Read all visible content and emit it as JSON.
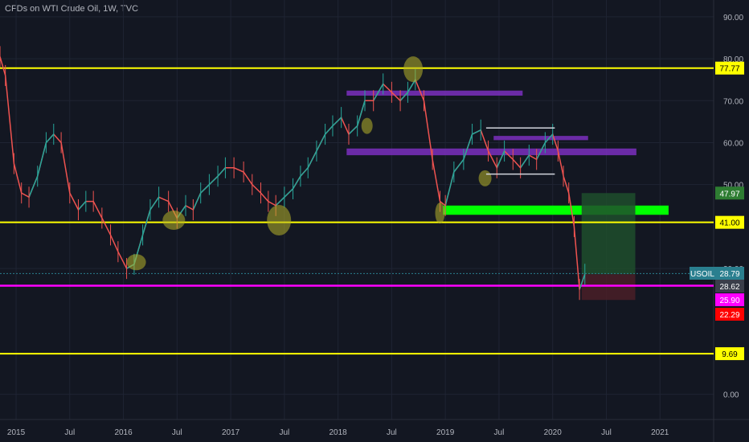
{
  "chart_title": "CFDs on WTI Crude Oil, 1W, TVC",
  "colors": {
    "background": "#131722",
    "grid": "#1f2433",
    "axis_text": "#b2b5be",
    "candle_up": "#26a69a",
    "candle_down": "#ef5350",
    "level_yellow": "#ffff00",
    "level_magenta": "#ff00ff",
    "zone_purple": "#7b2fbe",
    "zone_green": "#00ff00",
    "target_box": "#1e4d2b",
    "stop_box": "#4a1e27",
    "highlight_circle": "#b7b32a"
  },
  "chart_data": {
    "type": "line",
    "y_axis": {
      "range": [
        -6,
        94
      ],
      "ticks": [
        "90.00",
        "80.00",
        "70.00",
        "60.00",
        "50.00",
        "30.00",
        "0.00"
      ]
    },
    "x_axis": {
      "range": [
        2014.85,
        2021.5
      ],
      "ticks": [
        {
          "label": "2015",
          "x": 2015.0
        },
        {
          "label": "Jul",
          "x": 2015.5
        },
        {
          "label": "2016",
          "x": 2016.0
        },
        {
          "label": "Jul",
          "x": 2016.5
        },
        {
          "label": "2017",
          "x": 2017.0
        },
        {
          "label": "Jul",
          "x": 2017.5
        },
        {
          "label": "2018",
          "x": 2018.0
        },
        {
          "label": "Jul",
          "x": 2018.5
        },
        {
          "label": "2019",
          "x": 2019.0
        },
        {
          "label": "Jul",
          "x": 2019.5
        },
        {
          "label": "2020",
          "x": 2020.0
        },
        {
          "label": "Jul",
          "x": 2020.5
        },
        {
          "label": "2021",
          "x": 2021.0
        }
      ]
    },
    "series": [
      {
        "x": [
          2014.85,
          2014.9,
          2014.98,
          2015.05,
          2015.12,
          2015.2,
          2015.28,
          2015.35,
          2015.42,
          2015.5,
          2015.58,
          2015.65,
          2015.72,
          2015.8,
          2015.88,
          2015.95,
          2016.03,
          2016.1,
          2016.18,
          2016.25,
          2016.33,
          2016.42,
          2016.5,
          2016.58,
          2016.65,
          2016.72,
          2016.8,
          2016.88,
          2016.95,
          2017.03,
          2017.12,
          2017.2,
          2017.28,
          2017.35,
          2017.42,
          2017.5,
          2017.58,
          2017.65,
          2017.72,
          2017.8,
          2017.88,
          2017.95,
          2018.03,
          2018.1,
          2018.18,
          2018.25,
          2018.33,
          2018.42,
          2018.5,
          2018.58,
          2018.65,
          2018.72,
          2018.8,
          2018.88,
          2018.95,
          2019.0,
          2019.08,
          2019.17,
          2019.25,
          2019.33,
          2019.4,
          2019.48,
          2019.55,
          2019.63,
          2019.7,
          2019.78,
          2019.85,
          2019.93,
          2020.0,
          2020.05,
          2020.1,
          2020.15,
          2020.2,
          2020.25,
          2020.3
        ],
        "y": [
          80.5,
          76,
          55,
          48,
          47,
          52,
          60,
          62,
          60,
          48,
          44,
          46,
          46,
          42,
          38,
          34,
          30,
          31,
          38,
          44,
          47,
          46,
          42,
          45,
          44,
          48,
          50,
          52,
          54,
          54,
          53,
          50,
          48,
          46,
          45,
          47,
          49,
          52,
          54,
          58,
          62,
          64,
          66,
          62,
          64,
          70,
          70,
          74,
          72,
          70,
          72,
          75,
          70,
          56,
          46,
          45,
          53,
          56,
          62,
          63,
          58,
          54,
          58,
          56,
          54,
          57,
          56,
          60,
          62,
          58,
          52,
          48,
          40,
          25,
          28.62
        ]
      }
    ],
    "levels": [
      {
        "label": "77.77",
        "value": 77.77,
        "color": "yellow"
      },
      {
        "label": "47.97",
        "value": 47.97,
        "color": "green"
      },
      {
        "label": "41.00",
        "value": 41.0,
        "color": "yellow"
      },
      {
        "label": "28.79",
        "value": 28.79,
        "color": "teal"
      },
      {
        "label": "28.62",
        "value": 28.62,
        "color": "gray"
      },
      {
        "label": "25.90",
        "value": 25.9,
        "color": "magenta"
      },
      {
        "label": "22.29",
        "value": 22.29,
        "color": "red"
      },
      {
        "label": "9.69",
        "value": 9.69,
        "color": "yellow"
      }
    ],
    "symbol_label": "USOIL",
    "grid": true
  }
}
